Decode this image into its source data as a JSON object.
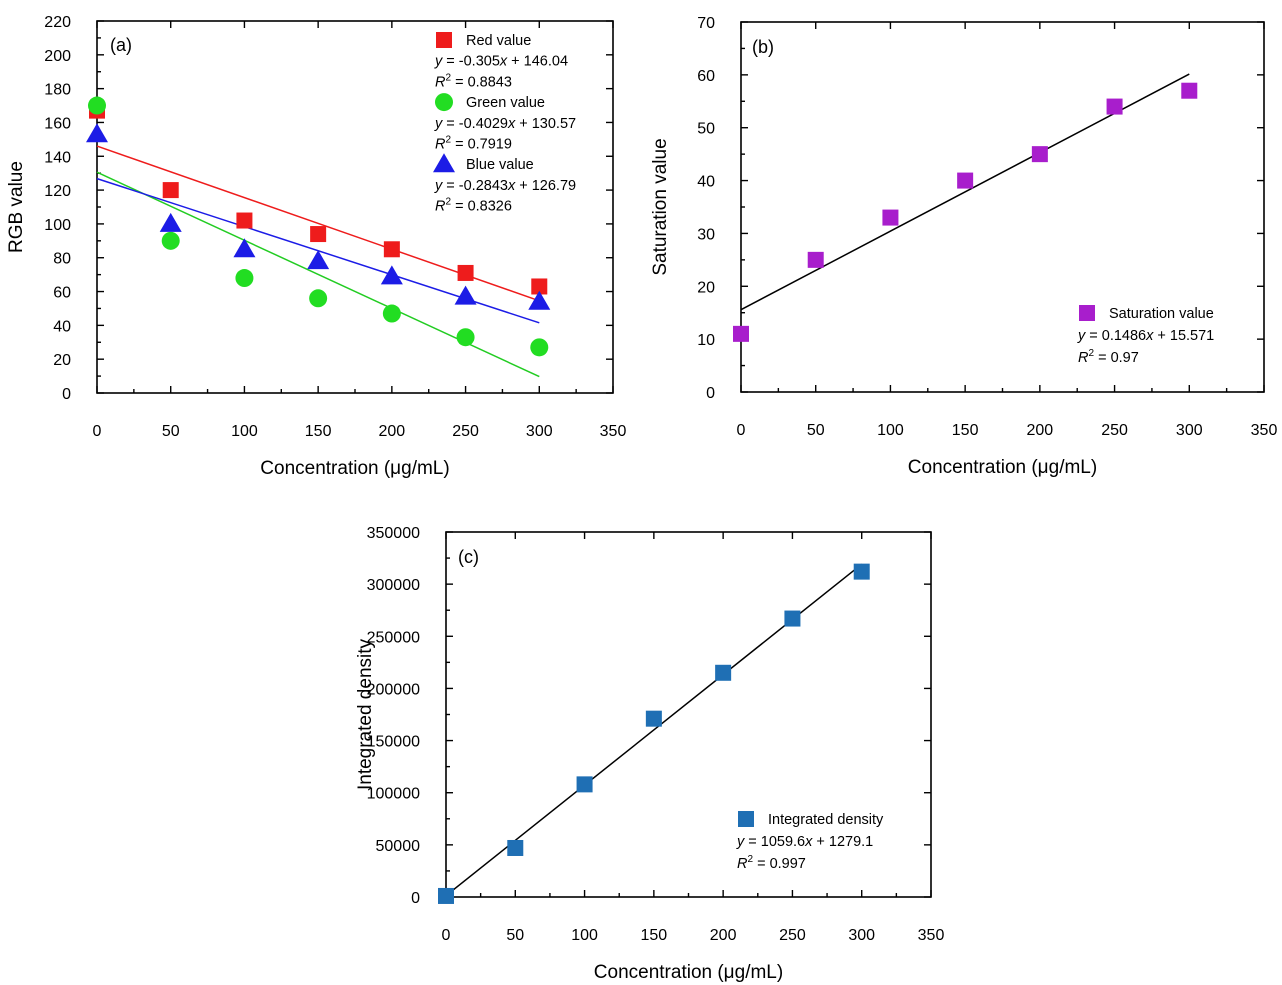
{
  "chart_data": [
    {
      "type": "scatter",
      "panel_label": "(a)",
      "xlabel": "Concentration (μg/mL)",
      "ylabel": "RGB value",
      "xlim": [
        0,
        350
      ],
      "ylim": [
        0,
        220
      ],
      "x_ticks": [
        0,
        50,
        100,
        150,
        200,
        250,
        300,
        350
      ],
      "y_ticks": [
        0,
        20,
        40,
        60,
        80,
        100,
        120,
        140,
        160,
        180,
        200,
        220
      ],
      "grid": false,
      "legend_position": "top-right",
      "x": [
        0,
        50,
        100,
        150,
        200,
        250,
        300
      ],
      "series": [
        {
          "name": "Red value",
          "marker": "square",
          "color": "#ee1c1c",
          "line_color": "#ee1c1c",
          "values": [
            167,
            120,
            102,
            94,
            85,
            71,
            63
          ],
          "fit": {
            "slope": -0.305,
            "intercept": 146.04
          },
          "equation": {
            "y": "y",
            "rest": " = -0.305",
            "x": "x",
            "tail": " + 146.04"
          },
          "r2": {
            "r": "R",
            "sup": "2",
            "rest": " = 0.8843"
          }
        },
        {
          "name": "Green value",
          "marker": "circle",
          "color": "#22dd22",
          "line_color": "#22cc22",
          "values": [
            170,
            90,
            68,
            56,
            47,
            33,
            27
          ],
          "fit": {
            "slope": -0.4029,
            "intercept": 130.57
          },
          "equation": {
            "y": "y",
            "rest": " = -0.4029",
            "x": "x",
            "tail": " + 130.57"
          },
          "r2": {
            "r": "R",
            "sup": "2",
            "rest": " = 0.7919"
          }
        },
        {
          "name": "Blue value",
          "marker": "triangle",
          "color": "#1c1ce6",
          "line_color": "#1c1ce6",
          "values": [
            153,
            100,
            85,
            78,
            69,
            57,
            54
          ],
          "fit": {
            "slope": -0.2843,
            "intercept": 126.79
          },
          "equation": {
            "y": "y",
            "rest": " = -0.2843",
            "x": "x",
            "tail": " + 126.79"
          },
          "r2": {
            "r": "R",
            "sup": "2",
            "rest": " = 0.8326"
          }
        }
      ]
    },
    {
      "type": "scatter",
      "panel_label": "(b)",
      "xlabel": "Concentration (μg/mL)",
      "ylabel": "Saturation value",
      "xlim": [
        0,
        350
      ],
      "ylim": [
        0,
        70
      ],
      "x_ticks": [
        0,
        50,
        100,
        150,
        200,
        250,
        300,
        350
      ],
      "y_ticks": [
        0,
        10,
        20,
        30,
        40,
        50,
        60,
        70
      ],
      "grid": false,
      "legend_position": "bottom-right",
      "x": [
        0,
        50,
        100,
        150,
        200,
        250,
        300
      ],
      "series": [
        {
          "name": "Saturation value",
          "marker": "square",
          "color": "#a81ecc",
          "line_color": "#000000",
          "values": [
            11,
            25,
            33,
            40,
            45,
            54,
            57
          ],
          "fit": {
            "slope": 0.1486,
            "intercept": 15.571
          },
          "equation": {
            "y": "y",
            "rest": " = 0.1486",
            "x": "x",
            "tail": " + 15.571"
          },
          "r2": {
            "r": "R",
            "sup": "2",
            "rest": " = 0.97"
          }
        }
      ]
    },
    {
      "type": "scatter",
      "panel_label": "(c)",
      "xlabel": "Concentration (μg/mL)",
      "ylabel": "Integrated density",
      "xlim": [
        0,
        350
      ],
      "ylim": [
        0,
        350000
      ],
      "x_ticks": [
        0,
        50,
        100,
        150,
        200,
        250,
        300,
        350
      ],
      "y_ticks": [
        0,
        50000,
        100000,
        150000,
        200000,
        250000,
        300000,
        350000
      ],
      "grid": false,
      "legend_position": "bottom-right",
      "x": [
        0,
        50,
        100,
        150,
        200,
        250,
        300
      ],
      "series": [
        {
          "name": "Integrated density",
          "marker": "square",
          "color": "#1f6fb4",
          "line_color": "#000000",
          "values": [
            1000,
            47000,
            108000,
            171000,
            215000,
            267000,
            312000
          ],
          "fit": {
            "slope": 1059.6,
            "intercept": 1279.1
          },
          "equation": {
            "y": "y",
            "rest": " = 1059.6",
            "x": "x",
            "tail": " + 1279.1"
          },
          "r2": {
            "r": "R",
            "sup": "2",
            "rest": " = 0.997"
          }
        }
      ]
    }
  ]
}
